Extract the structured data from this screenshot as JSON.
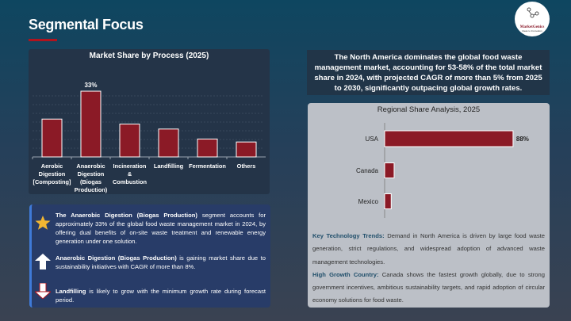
{
  "header": {
    "title": "Segmental Focus"
  },
  "logo": {
    "name": "MarketGenics",
    "tagline": "Ideas to Innovation"
  },
  "colors": {
    "accent": "#b0141e",
    "bar": "#8b1a26",
    "panel_dark": "#243448",
    "panel_light": "#bcc0c7"
  },
  "summary": "The North America dominates the global food waste management market, accounting for 53-58% of the total market share in 2024, with projected CAGR of more than 5% from 2025 to 2030, significantly outpacing global growth rates.",
  "chart_data": [
    {
      "type": "bar",
      "title": "Market Share by Process (2025)",
      "categories": [
        "Aerobic Digestion [Composting]",
        "Anaerobic Digestion (Biogas Production)",
        "Incineration & Combustion",
        "Landfilling",
        "Fermentation",
        "Others"
      ],
      "values": [
        19,
        33,
        16.5,
        14,
        9,
        7.5
      ],
      "data_labels": [
        "",
        "33%",
        "",
        "",
        "",
        ""
      ],
      "unit": "%",
      "grid": true,
      "ylim": [
        0,
        35
      ]
    },
    {
      "type": "bar",
      "orientation": "horizontal",
      "title": "Regional Share Analysis, 2025",
      "categories": [
        "USA",
        "Canada",
        "Mexico"
      ],
      "values": [
        88,
        6.5,
        4.5
      ],
      "data_labels": [
        "88%",
        "",
        ""
      ],
      "unit": "%",
      "xlim": [
        0,
        100
      ]
    }
  ],
  "insights": [
    {
      "label": "Key Technology Trends:",
      "text": " Demand in North America is driven by large food waste generation, strict regulations, and widespread adoption of advanced waste management technologies."
    },
    {
      "label": "High Growth Country:",
      "text": " Canada shows the fastest growth globally, due to strong government incentives, ambitious sustainability targets, and rapid adoption of circular economy solutions for food waste."
    }
  ],
  "highlights": [
    {
      "icon": "star-icon",
      "bold": "The Anaerobic Digestion (Biogas Production)",
      "text": " segment accounts for approximately 33% of the global food waste management market in 2024, by offering dual benefits of on-site waste treatment and renewable energy generation under one solution."
    },
    {
      "icon": "arrow-up-icon",
      "bold": "Anaerobic Digestion (Biogas Production)",
      "text": " is gaining market share due to sustainability initiatives with CAGR of more than 8%."
    },
    {
      "icon": "arrow-down-icon",
      "bold": "Landfilling",
      "text": " is likely to grow with the minimum growth rate during forecast period."
    }
  ]
}
